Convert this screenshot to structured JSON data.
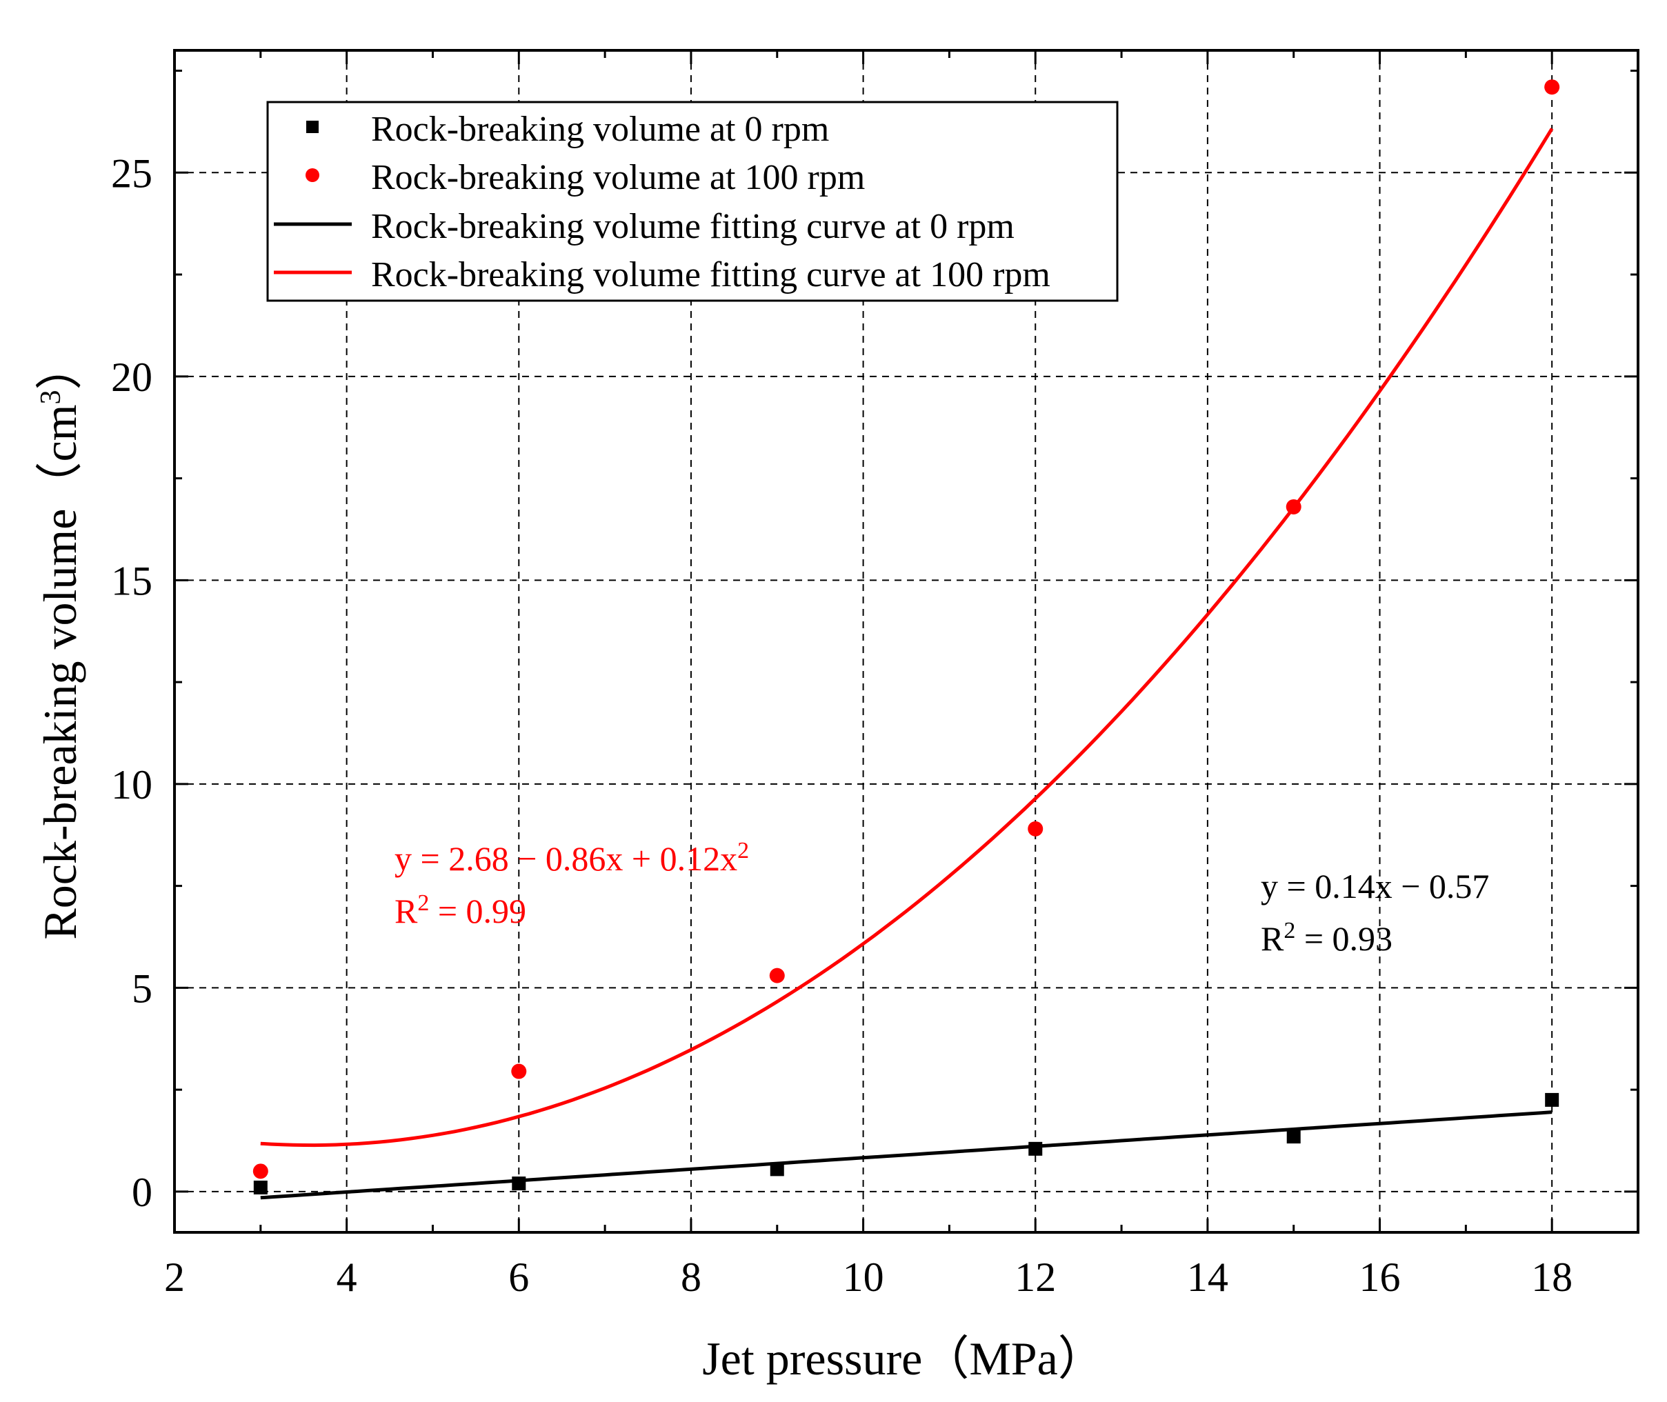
{
  "chart_data": {
    "type": "scatter",
    "xlabel": "Jet pressure（MPa）",
    "ylabel_main": "Rock-breaking volume（cm",
    "ylabel_sup": "3",
    "ylabel_close": "）",
    "xlim": [
      2,
      19
    ],
    "ylim": [
      -1,
      28
    ],
    "xticks": [
      2,
      4,
      6,
      8,
      10,
      12,
      14,
      16,
      18
    ],
    "yticks": [
      0,
      5,
      10,
      15,
      20,
      25
    ],
    "grid": true,
    "legend_position": "top-left",
    "series": [
      {
        "name": "Rock-breaking volume at 0 rpm",
        "kind": "points",
        "marker": "square",
        "color": "#000000",
        "x": [
          3,
          6,
          9,
          12,
          15,
          18
        ],
        "y": [
          0.1,
          0.2,
          0.55,
          1.05,
          1.35,
          2.25
        ]
      },
      {
        "name": "Rock-breaking volume at 100 rpm",
        "kind": "points",
        "marker": "circle",
        "color": "#ff0000",
        "x": [
          3,
          6,
          9,
          12,
          15,
          18
        ],
        "y": [
          0.5,
          2.95,
          5.3,
          8.9,
          16.8,
          27.1
        ]
      },
      {
        "name": "Rock-breaking volume fitting curve at 0 rpm",
        "kind": "line",
        "color": "#000000",
        "fit": {
          "model": "linear",
          "intercept": -0.57,
          "slope": 0.14
        },
        "x_range": [
          3,
          18
        ]
      },
      {
        "name": "Rock-breaking volume fitting curve at 100 rpm",
        "kind": "line",
        "color": "#ff0000",
        "fit": {
          "model": "quadratic",
          "a": 2.68,
          "b": -0.86,
          "c": 0.12
        },
        "x_range": [
          3,
          18
        ]
      }
    ],
    "annotations": [
      {
        "color": "#ff0000",
        "eq_main": "y = 2.68 − 0.86x + 0.12x",
        "eq_sup": "2",
        "r_main": "R",
        "r_sup": "2",
        "r_val": " = 0.99"
      },
      {
        "color": "#000000",
        "eq_main": "y = 0.14x − 0.57",
        "eq_sup": "",
        "r_main": "R",
        "r_sup": "2",
        "r_val": " = 0.93"
      }
    ]
  }
}
